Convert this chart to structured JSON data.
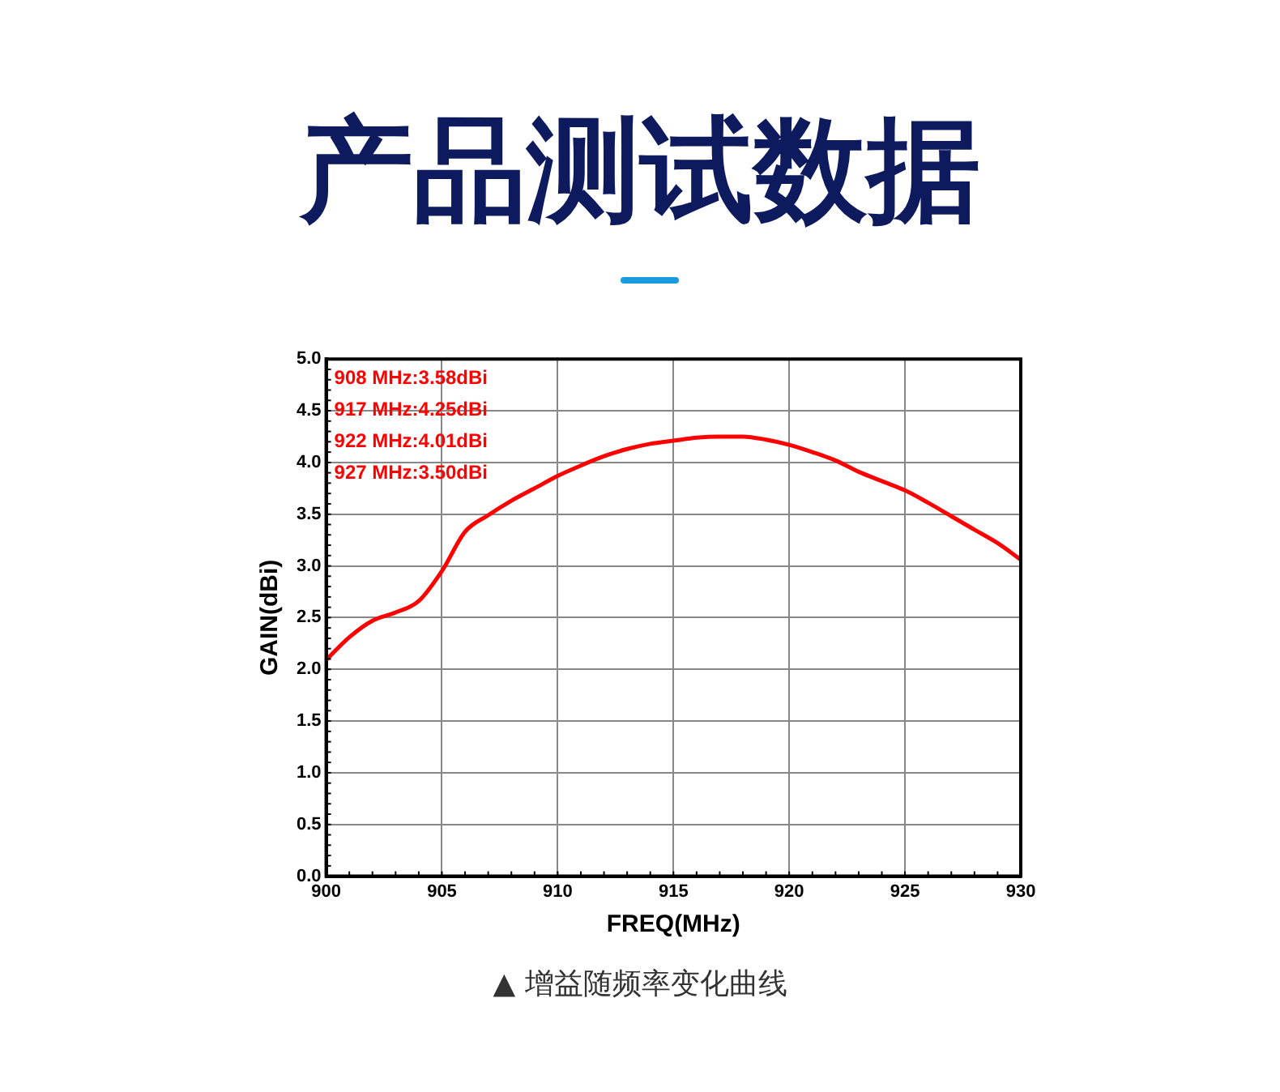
{
  "chart_data": {
    "type": "line",
    "title": "产品测试数据",
    "xlabel": "FREQ(MHz)",
    "ylabel": "GAIN(dBi)",
    "x": [
      900,
      901,
      902,
      903,
      904,
      905,
      906,
      907,
      908,
      909,
      910,
      911,
      912,
      913,
      914,
      915,
      916,
      917,
      918,
      919,
      920,
      921,
      922,
      923,
      924,
      925,
      926,
      927,
      928,
      929,
      930
    ],
    "series": [
      {
        "color": "#ff0000",
        "values": [
          2.09,
          2.31,
          2.47,
          2.55,
          2.66,
          2.95,
          3.33,
          3.49,
          3.63,
          3.75,
          3.87,
          3.97,
          4.06,
          4.13,
          4.18,
          4.21,
          4.24,
          4.25,
          4.25,
          4.22,
          4.17,
          4.1,
          4.02,
          3.91,
          3.82,
          3.73,
          3.61,
          3.48,
          3.35,
          3.22,
          3.06
        ]
      }
    ],
    "xlim": [
      900,
      930
    ],
    "xticks": [
      900,
      905,
      910,
      915,
      920,
      925,
      930
    ],
    "ylim": [
      0,
      5
    ],
    "yticks": [
      {
        "value": 0,
        "label": "0.0"
      },
      {
        "value": 0.5,
        "label": "0.5"
      },
      {
        "value": 1,
        "label": "1.0"
      },
      {
        "value": 1.5,
        "label": "1.5"
      },
      {
        "value": 2,
        "label": "2.0"
      },
      {
        "value": 2.5,
        "label": "2.5"
      },
      {
        "value": 3,
        "label": "3.0"
      },
      {
        "value": 3.5,
        "label": "3.5"
      },
      {
        "value": 4,
        "label": "4.0"
      },
      {
        "value": 4.5,
        "label": "4.5"
      },
      {
        "value": 5,
        "label": "5.0"
      }
    ],
    "grid": true,
    "marker": "none",
    "line_style": "solid",
    "annotations": [
      "908 MHz:3.58dBi",
      "917 MHz:4.25dBi",
      "922 MHz:4.01dBi",
      "927 MHz:3.50dBi",
      "▲ 增益随频率变化曲线"
    ]
  }
}
